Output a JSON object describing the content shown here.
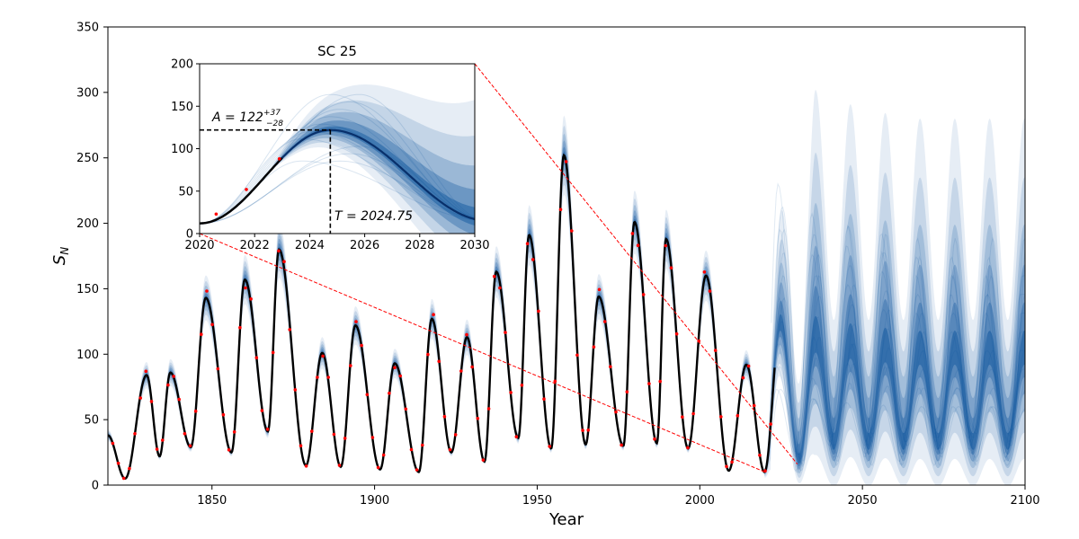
{
  "colors": {
    "fan": "#08519c",
    "fan_light": "#9ecae1",
    "mean_line": "#000000",
    "observed_points": "#ff0000",
    "zoom_lines": "#ff0000"
  },
  "chart_data": [
    {
      "type": "line",
      "panel": "main",
      "title": "",
      "xlabel": "Year",
      "ylabel": "S_N",
      "xlim": [
        1818,
        2100
      ],
      "ylim": [
        0,
        350
      ],
      "x_ticks": [
        1850,
        1900,
        1950,
        2000,
        2050,
        2100
      ],
      "y_ticks": [
        0,
        50,
        100,
        150,
        200,
        250,
        300,
        350
      ],
      "grid": false,
      "cycle_minima": [
        {
          "x": 1823.3,
          "y": 5
        },
        {
          "x": 1833.9,
          "y": 22
        },
        {
          "x": 1843.5,
          "y": 29
        },
        {
          "x": 1856.0,
          "y": 25
        },
        {
          "x": 1867.2,
          "y": 41
        },
        {
          "x": 1878.9,
          "y": 15
        },
        {
          "x": 1889.6,
          "y": 14
        },
        {
          "x": 1901.7,
          "y": 12
        },
        {
          "x": 1913.6,
          "y": 10
        },
        {
          "x": 1923.6,
          "y": 25
        },
        {
          "x": 1933.8,
          "y": 18
        },
        {
          "x": 1944.2,
          "y": 36
        },
        {
          "x": 1954.3,
          "y": 28
        },
        {
          "x": 1964.9,
          "y": 31
        },
        {
          "x": 1976.5,
          "y": 30
        },
        {
          "x": 1986.8,
          "y": 32
        },
        {
          "x": 1996.4,
          "y": 28
        },
        {
          "x": 2008.9,
          "y": 11
        },
        {
          "x": 2019.9,
          "y": 10
        }
      ],
      "cycle_maxima": [
        {
          "x": 1829.9,
          "y": 84
        },
        {
          "x": 1837.2,
          "y": 86
        },
        {
          "x": 1848.1,
          "y": 143
        },
        {
          "x": 1860.1,
          "y": 157
        },
        {
          "x": 1870.6,
          "y": 180
        },
        {
          "x": 1883.9,
          "y": 101
        },
        {
          "x": 1894.1,
          "y": 122
        },
        {
          "x": 1906.2,
          "y": 93
        },
        {
          "x": 1917.6,
          "y": 127
        },
        {
          "x": 1928.4,
          "y": 113
        },
        {
          "x": 1937.4,
          "y": 163
        },
        {
          "x": 1947.5,
          "y": 191
        },
        {
          "x": 1958.2,
          "y": 252
        },
        {
          "x": 1968.9,
          "y": 144
        },
        {
          "x": 1979.9,
          "y": 201
        },
        {
          "x": 1989.6,
          "y": 188
        },
        {
          "x": 2001.9,
          "y": 160
        },
        {
          "x": 2014.3,
          "y": 92
        },
        {
          "x": 2024.75,
          "y": 122
        }
      ],
      "forecast_maxima": [
        {
          "x": 2035.6,
          "y": 110,
          "y_hi": 200
        },
        {
          "x": 2046.3,
          "y": 105,
          "y_hi": 205
        },
        {
          "x": 2057.0,
          "y": 102,
          "y_hi": 205
        },
        {
          "x": 2067.7,
          "y": 100,
          "y_hi": 205
        },
        {
          "x": 2078.4,
          "y": 100,
          "y_hi": 205
        },
        {
          "x": 2089.1,
          "y": 100,
          "y_hi": 205
        },
        {
          "x": 2099.8,
          "y": 100,
          "y_hi": 205
        }
      ],
      "forecast_minima": [
        {
          "x": 2030.5,
          "y": 18
        },
        {
          "x": 2041.2,
          "y": 30
        },
        {
          "x": 2051.9,
          "y": 30
        },
        {
          "x": 2062.6,
          "y": 30
        },
        {
          "x": 2073.3,
          "y": 30
        },
        {
          "x": 2084.0,
          "y": 30
        },
        {
          "x": 2094.7,
          "y": 30
        }
      ]
    },
    {
      "type": "line",
      "panel": "inset",
      "title": "SC 25",
      "xlim": [
        2020,
        2030
      ],
      "ylim": [
        0,
        200
      ],
      "x_ticks": [
        2020,
        2022,
        2024,
        2026,
        2028,
        2030
      ],
      "y_ticks": [
        0,
        50,
        100,
        150,
        200
      ],
      "observed_points": [
        {
          "x": 2020.6,
          "y": 23
        },
        {
          "x": 2021.7,
          "y": 52
        },
        {
          "x": 2022.9,
          "y": 88
        }
      ],
      "amplitude": {
        "value": 122,
        "label_base": "A = 122",
        "plus": "+37",
        "minus": "−28"
      },
      "peak_time": {
        "value": 2024.75,
        "label": "T = 2024.75"
      }
    }
  ]
}
